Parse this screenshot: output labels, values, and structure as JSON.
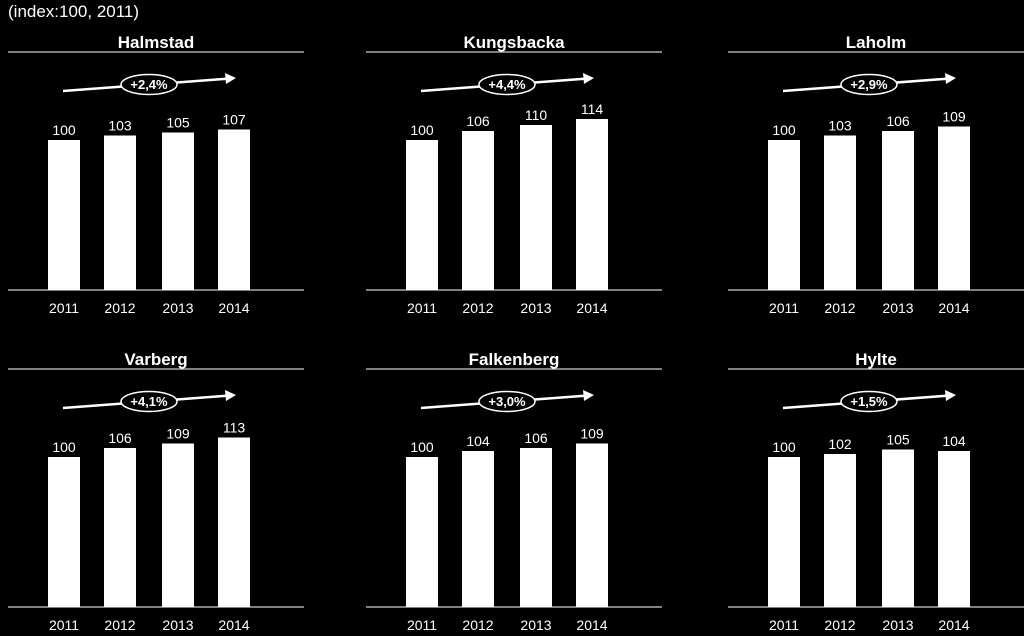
{
  "subtitle": "(index:100, 2011)",
  "colors": {
    "background": "#000000",
    "bars": "#ffffff",
    "text": "#ffffff"
  },
  "chart_data": [
    {
      "type": "bar",
      "title": "Halmstad",
      "categories": [
        "2011",
        "2012",
        "2013",
        "2014"
      ],
      "values": [
        100,
        103,
        105,
        107
      ],
      "annotation": "+2,4%",
      "ylim": [
        0,
        120
      ]
    },
    {
      "type": "bar",
      "title": "Kungsbacka",
      "categories": [
        "2011",
        "2012",
        "2013",
        "2014"
      ],
      "values": [
        100,
        106,
        110,
        114
      ],
      "annotation": "+4,4%",
      "ylim": [
        0,
        120
      ]
    },
    {
      "type": "bar",
      "title": "Laholm",
      "categories": [
        "2011",
        "2012",
        "2013",
        "2014"
      ],
      "values": [
        100,
        103,
        106,
        109
      ],
      "annotation": "+2,9%",
      "ylim": [
        0,
        120
      ]
    },
    {
      "type": "bar",
      "title": "Varberg",
      "categories": [
        "2011",
        "2012",
        "2013",
        "2014"
      ],
      "values": [
        100,
        106,
        109,
        113
      ],
      "annotation": "+4,1%",
      "ylim": [
        0,
        120
      ]
    },
    {
      "type": "bar",
      "title": "Falkenberg",
      "categories": [
        "2011",
        "2012",
        "2013",
        "2014"
      ],
      "values": [
        100,
        104,
        106,
        109
      ],
      "annotation": "+3,0%",
      "ylim": [
        0,
        120
      ]
    },
    {
      "type": "bar",
      "title": "Hylte",
      "categories": [
        "2011",
        "2012",
        "2013",
        "2014"
      ],
      "values": [
        100,
        102,
        105,
        104
      ],
      "annotation": "+1,5%",
      "ylim": [
        0,
        120
      ]
    }
  ]
}
